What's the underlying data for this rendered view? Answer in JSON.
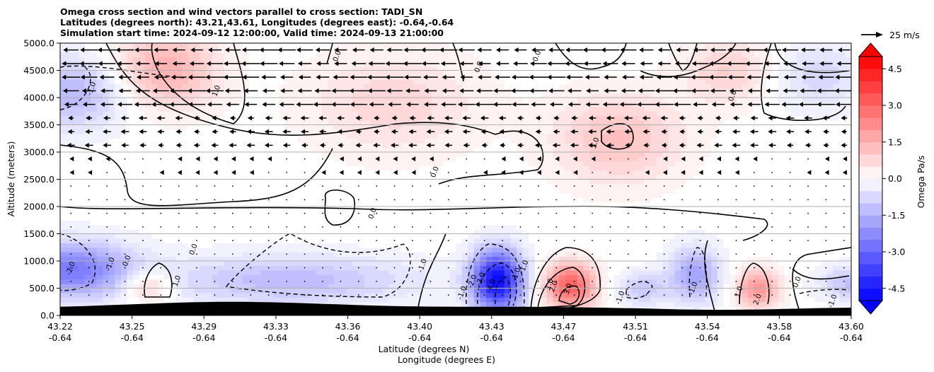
{
  "chart_data": {
    "type": "heatmap",
    "title_lines": [
      "Omega cross section and wind vectors parallel to cross section: TADI_SN",
      "Latitudes (degrees north): 43.21,43.61, Longitudes (degrees east): -0.64,-0.64",
      "Simulation start time: 2024-09-12 12:00:00, Valid time: 2024-09-13 21:00:00"
    ],
    "xlabel_lines": [
      "Latitude (degrees N)",
      "Longitude (degrees E)"
    ],
    "ylabel": "Altitude (meters)",
    "colorbar_label": "Omega Pa/s",
    "quiver_key_label": "25 m/s",
    "x_ticks": [
      {
        "lat": "43.22",
        "lon": "-0.64"
      },
      {
        "lat": "43.25",
        "lon": "-0.64"
      },
      {
        "lat": "43.29",
        "lon": "-0.64"
      },
      {
        "lat": "43.33",
        "lon": "-0.64"
      },
      {
        "lat": "43.36",
        "lon": "-0.64"
      },
      {
        "lat": "43.40",
        "lon": "-0.64"
      },
      {
        "lat": "43.43",
        "lon": "-0.64"
      },
      {
        "lat": "43.47",
        "lon": "-0.64"
      },
      {
        "lat": "43.51",
        "lon": "-0.64"
      },
      {
        "lat": "43.54",
        "lon": "-0.64"
      },
      {
        "lat": "43.58",
        "lon": "-0.64"
      },
      {
        "lat": "43.60",
        "lon": "-0.64"
      }
    ],
    "y_ticks": [
      "0.0",
      "500.0",
      "1000.0",
      "1500.0",
      "2000.0",
      "2500.0",
      "3000.0",
      "3500.0",
      "4000.0",
      "4500.0",
      "5000.0"
    ],
    "ylim": [
      0,
      5000
    ],
    "colorbar_ticks": [
      "-4.5",
      "-3.0",
      "-1.5",
      "0.0",
      "1.5",
      "3.0",
      "4.5"
    ],
    "colorbar_range": [
      -5,
      5
    ],
    "grid": "horizontal",
    "terrain_color": "#000000",
    "omega_blobs": [
      {
        "lat": 43.225,
        "alt": 4100,
        "rlat": 0.03,
        "ralt": 650,
        "v": -1.4
      },
      {
        "lat": 43.225,
        "alt": 850,
        "rlat": 0.03,
        "ralt": 500,
        "v": -2.6
      },
      {
        "lat": 43.27,
        "alt": 4500,
        "rlat": 0.025,
        "ralt": 700,
        "v": 1.6
      },
      {
        "lat": 43.262,
        "alt": 550,
        "rlat": 0.012,
        "ralt": 300,
        "v": 1.3
      },
      {
        "lat": 43.33,
        "alt": 650,
        "rlat": 0.06,
        "ralt": 450,
        "v": -1.3
      },
      {
        "lat": 43.38,
        "alt": 3900,
        "rlat": 0.04,
        "ralt": 900,
        "v": 0.8
      },
      {
        "lat": 43.43,
        "alt": 650,
        "rlat": 0.012,
        "ralt": 550,
        "v": -4.8
      },
      {
        "lat": 43.465,
        "alt": 550,
        "rlat": 0.012,
        "ralt": 400,
        "v": 3.2
      },
      {
        "lat": 43.488,
        "alt": 3250,
        "rlat": 0.03,
        "ralt": 800,
        "v": 1.2
      },
      {
        "lat": 43.5,
        "alt": 500,
        "rlat": 0.012,
        "ralt": 300,
        "v": -1.1
      },
      {
        "lat": 43.525,
        "alt": 750,
        "rlat": 0.012,
        "ralt": 500,
        "v": -1.8
      },
      {
        "lat": 43.555,
        "alt": 500,
        "rlat": 0.01,
        "ralt": 350,
        "v": 2.1
      },
      {
        "lat": 43.585,
        "alt": 4400,
        "rlat": 0.02,
        "ralt": 600,
        "v": -0.8
      },
      {
        "lat": 43.54,
        "alt": 4500,
        "rlat": 0.02,
        "ralt": 600,
        "v": 0.9
      },
      {
        "lat": 43.6,
        "alt": 600,
        "rlat": 0.015,
        "ralt": 300,
        "v": -1.2
      }
    ],
    "contour_labels": [
      {
        "text": "0.0",
        "lat": 43.354,
        "alt": 4750
      },
      {
        "text": "0.0",
        "lat": 43.422,
        "alt": 4550
      },
      {
        "text": "0.0",
        "lat": 43.45,
        "alt": 4750
      },
      {
        "text": "0.0",
        "lat": 43.544,
        "alt": 4020
      },
      {
        "text": "-1.0",
        "lat": 43.236,
        "alt": 4150
      },
      {
        "text": "1.0",
        "lat": 43.296,
        "alt": 4110
      },
      {
        "text": "1.0",
        "lat": 43.478,
        "alt": 3150
      },
      {
        "text": "0.0",
        "lat": 43.401,
        "alt": 2620
      },
      {
        "text": "0.0",
        "lat": 43.371,
        "alt": 1860
      },
      {
        "text": "0.0",
        "lat": 43.285,
        "alt": 1200
      },
      {
        "text": "0.0",
        "lat": 43.253,
        "alt": 990
      },
      {
        "text": "-1.0",
        "lat": 43.245,
        "alt": 930
      },
      {
        "text": "-2.0",
        "lat": 43.226,
        "alt": 850
      },
      {
        "text": "1.0",
        "lat": 43.277,
        "alt": 620
      },
      {
        "text": "-1.0",
        "lat": 43.395,
        "alt": 900
      },
      {
        "text": "-1.0",
        "lat": 43.414,
        "alt": 400
      },
      {
        "text": "-2.0",
        "lat": 43.419,
        "alt": 610
      },
      {
        "text": "-3.0",
        "lat": 43.423,
        "alt": 650
      },
      {
        "text": "-4.0",
        "lat": 43.428,
        "alt": 530
      },
      {
        "text": "1.0",
        "lat": 43.444,
        "alt": 900
      },
      {
        "text": "-1.0",
        "lat": 43.44,
        "alt": 740
      },
      {
        "text": "1.0",
        "lat": 43.456,
        "alt": 560
      },
      {
        "text": "2.0",
        "lat": 43.458,
        "alt": 520
      },
      {
        "text": "3.0",
        "lat": 43.465,
        "alt": 470
      },
      {
        "text": "-1.0",
        "lat": 43.49,
        "alt": 310
      },
      {
        "text": "-1.0",
        "lat": 43.525,
        "alt": 480
      },
      {
        "text": "1.0",
        "lat": 43.547,
        "alt": 420
      },
      {
        "text": "2.0",
        "lat": 43.556,
        "alt": 280
      },
      {
        "text": "0.0",
        "lat": 43.575,
        "alt": 600
      },
      {
        "text": "-1.0",
        "lat": 43.592,
        "alt": 250
      }
    ]
  }
}
